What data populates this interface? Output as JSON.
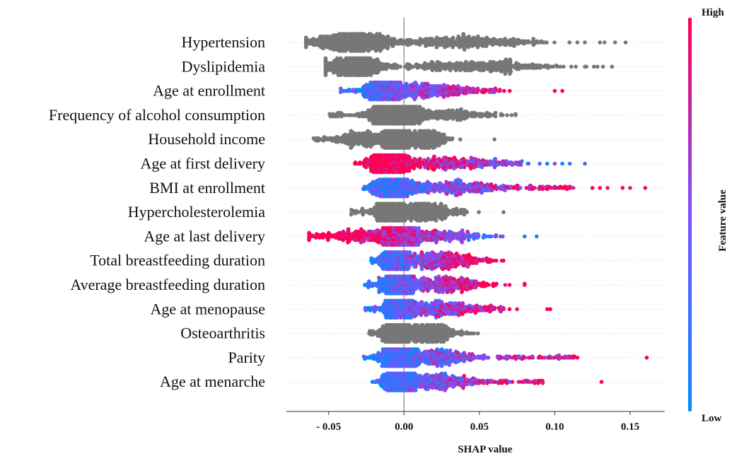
{
  "chart_data": {
    "type": "scatter",
    "subtype": "shap-beeswarm",
    "title": "",
    "xlabel": "SHAP value",
    "ylabel": "",
    "xlim": [
      -0.078,
      0.173
    ],
    "xticks": [
      -0.05,
      0.0,
      0.05,
      0.1,
      0.15
    ],
    "xtick_labels": [
      "- 0.05",
      "0.00",
      "0.05",
      "0.10",
      "0.15"
    ],
    "grid": false,
    "colorbar": {
      "label": "Feature value",
      "high_label": "High",
      "low_label": "Low",
      "high_color": "#ff0052",
      "low_color": "#008bfb",
      "unscaled_color": "#777777"
    },
    "features": [
      {
        "name": "Hypertension",
        "colored": false,
        "min": -0.065,
        "max": 0.147,
        "clusters": [
          [
            -0.033,
            0.014,
            1.0
          ],
          [
            0.038,
            0.022,
            0.55
          ]
        ],
        "outliers": [
          0.115,
          0.12,
          0.13,
          0.133,
          0.14,
          0.147
        ]
      },
      {
        "name": "Dyslipidemia",
        "colored": false,
        "min": -0.052,
        "max": 0.138,
        "clusters": [
          [
            -0.032,
            0.01,
            0.85
          ],
          [
            0.05,
            0.025,
            0.4
          ]
        ],
        "outliers": [
          0.003,
          0.12,
          0.126,
          0.132,
          0.138
        ]
      },
      {
        "name": "Age at enrollment",
        "colored": true,
        "min": -0.042,
        "max": 0.105,
        "clusters": [
          [
            -0.013,
            0.006,
            0.85
          ],
          [
            0.015,
            0.018,
            0.55
          ]
        ],
        "outliers": [
          0.1,
          0.105
        ],
        "trend": 1
      },
      {
        "name": "Frequency of alcohol consumption",
        "colored": false,
        "min": -0.05,
        "max": 0.074,
        "clusters": [
          [
            -0.013,
            0.006,
            0.8
          ],
          [
            0.003,
            0.006,
            0.6
          ],
          [
            0.03,
            0.018,
            0.35
          ]
        ],
        "outliers": [
          0.074
        ]
      },
      {
        "name": "Household income",
        "colored": false,
        "min": -0.06,
        "max": 0.06,
        "clusters": [
          [
            -0.005,
            0.005,
            0.75
          ],
          [
            0.015,
            0.007,
            0.5
          ],
          [
            -0.03,
            0.01,
            0.3
          ]
        ],
        "outliers": [
          -0.06,
          -0.055,
          0.06
        ]
      },
      {
        "name": "Age at first delivery",
        "colored": true,
        "min": -0.033,
        "max": 0.12,
        "clusters": [
          [
            -0.011,
            0.006,
            0.8
          ],
          [
            0.03,
            0.02,
            0.35
          ]
        ],
        "outliers": [
          0.09,
          0.095,
          0.1,
          0.105,
          0.11,
          0.12
        ],
        "trend": -1
      },
      {
        "name": "BMI at enrollment",
        "colored": true,
        "min": -0.027,
        "max": 0.16,
        "clusters": [
          [
            -0.008,
            0.006,
            0.8
          ],
          [
            0.03,
            0.022,
            0.45
          ]
        ],
        "outliers": [
          0.095,
          0.1,
          0.105,
          0.125,
          0.13,
          0.135,
          0.145,
          0.15,
          0.16
        ],
        "trend": 1
      },
      {
        "name": "Hypercholesterolemia",
        "colored": false,
        "min": -0.035,
        "max": 0.066,
        "clusters": [
          [
            -0.01,
            0.005,
            0.75
          ],
          [
            0.012,
            0.012,
            0.45
          ]
        ],
        "outliers": [
          -0.035,
          0.066
        ]
      },
      {
        "name": "Age at last delivery",
        "colored": true,
        "min": -0.063,
        "max": 0.088,
        "clusters": [
          [
            -0.002,
            0.006,
            0.85
          ],
          [
            -0.03,
            0.015,
            0.3
          ],
          [
            0.025,
            0.015,
            0.3
          ]
        ],
        "outliers": [
          -0.063,
          -0.058,
          0.08,
          0.088
        ],
        "trend": -1
      },
      {
        "name": "Total breastfeeding duration",
        "colored": true,
        "min": -0.022,
        "max": 0.066,
        "clusters": [
          [
            -0.006,
            0.005,
            0.85
          ],
          [
            0.025,
            0.015,
            0.5
          ]
        ],
        "outliers": [],
        "trend": 1
      },
      {
        "name": "Average breastfeeding duration",
        "colored": true,
        "min": -0.026,
        "max": 0.08,
        "clusters": [
          [
            -0.004,
            0.005,
            0.8
          ],
          [
            0.025,
            0.016,
            0.45
          ]
        ],
        "outliers": [
          0.07,
          0.08
        ],
        "trend": 1
      },
      {
        "name": "Age at menopause",
        "colored": true,
        "min": -0.026,
        "max": 0.097,
        "clusters": [
          [
            -0.003,
            0.005,
            0.85
          ],
          [
            0.022,
            0.015,
            0.45
          ]
        ],
        "outliers": [
          0.065,
          0.07,
          0.075,
          0.095,
          0.097
        ],
        "trend": 1
      },
      {
        "name": "Osteoarthritis",
        "colored": false,
        "min": -0.024,
        "max": 0.049,
        "clusters": [
          [
            -0.006,
            0.004,
            0.7
          ],
          [
            0.015,
            0.01,
            0.5
          ]
        ],
        "outliers": [
          0.045,
          0.049
        ]
      },
      {
        "name": "Parity",
        "colored": true,
        "min": -0.027,
        "max": 0.161,
        "clusters": [
          [
            -0.004,
            0.006,
            0.8
          ],
          [
            0.02,
            0.015,
            0.4
          ]
        ],
        "outliers": [
          0.068,
          0.09,
          0.105,
          0.108,
          0.112,
          0.115,
          0.161
        ],
        "trend": 1
      },
      {
        "name": "Age at menarche",
        "colored": true,
        "min": -0.021,
        "max": 0.131,
        "clusters": [
          [
            -0.004,
            0.005,
            0.75
          ],
          [
            0.02,
            0.014,
            0.4
          ]
        ],
        "outliers": [
          0.065,
          0.07,
          0.092,
          0.131
        ],
        "trend": 1
      }
    ]
  }
}
